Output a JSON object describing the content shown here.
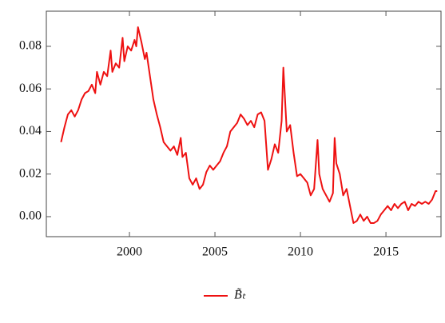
{
  "chart_data": {
    "type": "line",
    "x": [
      1996.0,
      1996.2,
      1996.4,
      1996.6,
      1996.8,
      1997.0,
      1997.2,
      1997.4,
      1997.6,
      1997.8,
      1998.0,
      1998.1,
      1998.3,
      1998.5,
      1998.7,
      1998.9,
      1999.0,
      1999.2,
      1999.4,
      1999.6,
      1999.7,
      1999.9,
      2000.1,
      2000.3,
      2000.4,
      2000.5,
      2000.7,
      2000.9,
      2001.0,
      2001.2,
      2001.4,
      2001.6,
      2001.8,
      2002.0,
      2002.2,
      2002.4,
      2002.6,
      2002.8,
      2003.0,
      2003.1,
      2003.3,
      2003.5,
      2003.7,
      2003.9,
      2004.1,
      2004.3,
      2004.5,
      2004.7,
      2004.9,
      2005.1,
      2005.3,
      2005.5,
      2005.7,
      2005.9,
      2006.1,
      2006.3,
      2006.5,
      2006.7,
      2006.9,
      2007.1,
      2007.3,
      2007.5,
      2007.7,
      2007.9,
      2008.1,
      2008.3,
      2008.5,
      2008.7,
      2008.9,
      2009.0,
      2009.2,
      2009.4,
      2009.6,
      2009.8,
      2010.0,
      2010.2,
      2010.4,
      2010.6,
      2010.8,
      2011.0,
      2011.1,
      2011.3,
      2011.5,
      2011.7,
      2011.9,
      2012.0,
      2012.1,
      2012.3,
      2012.5,
      2012.7,
      2012.9,
      2013.1,
      2013.3,
      2013.5,
      2013.7,
      2013.9,
      2014.1,
      2014.3,
      2014.5,
      2014.7,
      2014.9,
      2015.1,
      2015.3,
      2015.5,
      2015.7,
      2015.9,
      2016.1,
      2016.3,
      2016.5,
      2016.7,
      2016.9,
      2017.1,
      2017.3,
      2017.5,
      2017.7,
      2017.9,
      2018.0
    ],
    "series": [
      {
        "name": "B̃ₜ",
        "color": "#ee1111",
        "values": [
          0.035,
          0.042,
          0.048,
          0.05,
          0.047,
          0.05,
          0.055,
          0.058,
          0.059,
          0.062,
          0.058,
          0.068,
          0.062,
          0.068,
          0.066,
          0.078,
          0.068,
          0.072,
          0.07,
          0.084,
          0.073,
          0.08,
          0.078,
          0.083,
          0.08,
          0.089,
          0.082,
          0.074,
          0.077,
          0.066,
          0.055,
          0.048,
          0.042,
          0.035,
          0.033,
          0.031,
          0.033,
          0.029,
          0.037,
          0.028,
          0.03,
          0.018,
          0.015,
          0.018,
          0.013,
          0.015,
          0.021,
          0.024,
          0.022,
          0.024,
          0.026,
          0.03,
          0.033,
          0.04,
          0.042,
          0.044,
          0.048,
          0.046,
          0.043,
          0.045,
          0.042,
          0.048,
          0.049,
          0.045,
          0.022,
          0.027,
          0.034,
          0.03,
          0.045,
          0.07,
          0.04,
          0.043,
          0.03,
          0.019,
          0.02,
          0.018,
          0.016,
          0.01,
          0.013,
          0.036,
          0.02,
          0.013,
          0.01,
          0.007,
          0.011,
          0.037,
          0.025,
          0.02,
          0.01,
          0.013,
          0.005,
          -0.003,
          -0.002,
          0.001,
          -0.002,
          0.0,
          -0.003,
          -0.003,
          -0.002,
          0.001,
          0.003,
          0.005,
          0.003,
          0.006,
          0.004,
          0.006,
          0.007,
          0.003,
          0.006,
          0.005,
          0.007,
          0.006,
          0.007,
          0.006,
          0.008,
          0.012,
          0.012
        ]
      }
    ],
    "xlim": [
      1995.14,
      2018.22
    ],
    "xticks": [
      2000,
      2005,
      2010,
      2015
    ],
    "ylim": [
      -0.0094,
      0.0965
    ],
    "yticks": [
      {
        "value": 0,
        "label": "0.00"
      },
      0.02,
      0.04,
      0.06,
      0.08
    ],
    "legend": "bottom"
  }
}
